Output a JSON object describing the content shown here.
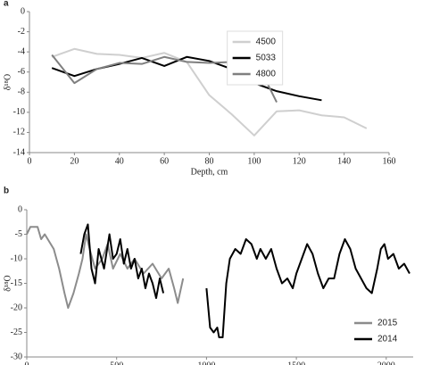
{
  "chart_data": [
    {
      "type": "line",
      "title": "a",
      "xlabel": "Depth, cm",
      "ylabel": "δ¹⁸O",
      "xlim": [
        0,
        160
      ],
      "xticks": [
        0,
        20,
        40,
        60,
        80,
        100,
        120,
        140,
        160
      ],
      "ylim": [
        -14,
        0
      ],
      "yticks": [
        0,
        -2,
        -4,
        -6,
        -8,
        -10,
        -12,
        -14
      ],
      "legend": "right",
      "grid": false,
      "series": [
        {
          "name": "4500",
          "color": "#cfcfcf",
          "x": [
            10,
            20,
            30,
            40,
            50,
            60,
            70,
            80,
            90,
            100,
            110,
            120,
            130,
            140,
            150
          ],
          "values": [
            -4.5,
            -3.7,
            -4.2,
            -4.3,
            -4.6,
            -4.1,
            -5.0,
            -8.3,
            -10.2,
            -12.3,
            -9.9,
            -9.8,
            -10.3,
            -10.5,
            -11.6
          ]
        },
        {
          "name": "5033",
          "color": "#000000",
          "x": [
            10,
            20,
            30,
            40,
            50,
            60,
            70,
            80,
            90,
            100,
            110,
            120,
            130
          ],
          "values": [
            -5.6,
            -6.4,
            -5.7,
            -5.2,
            -4.6,
            -5.4,
            -4.5,
            -4.9,
            -5.7,
            -7.1,
            -7.9,
            -8.4,
            -8.8
          ]
        },
        {
          "name": "4800",
          "color": "#7f7f7f",
          "x": [
            10,
            20,
            30,
            40,
            50,
            60,
            70,
            80,
            90,
            100,
            110
          ],
          "values": [
            -4.3,
            -7.1,
            -5.7,
            -5.1,
            -5.2,
            -4.5,
            -5.0,
            -5.1,
            -5.0,
            -4.5,
            -9.0
          ]
        }
      ]
    },
    {
      "type": "line",
      "title": "b",
      "xlabel": "Depth, cm",
      "ylabel": "δ¹⁸O",
      "xlim": [
        0,
        2150
      ],
      "xticks": [
        0,
        500,
        1000,
        1500,
        2000
      ],
      "ylim": [
        -30,
        0
      ],
      "yticks": [
        0,
        -5,
        -10,
        -15,
        -20,
        -25,
        -30
      ],
      "legend": "lower right",
      "grid": false,
      "series": [
        {
          "name": "2015",
          "color": "#8c8c8c",
          "x": [
            0,
            20,
            60,
            80,
            100,
            150,
            180,
            210,
            230,
            260,
            290,
            310,
            330,
            350,
            380,
            420,
            450,
            480,
            520,
            560,
            600,
            650,
            700,
            750,
            790,
            820,
            840,
            870
          ],
          "values": [
            -5,
            -3.5,
            -3.5,
            -6,
            -5,
            -8,
            -12,
            -17,
            -20,
            -17,
            -13,
            -10,
            -5,
            -8,
            -12,
            -10,
            -7,
            -12,
            -9,
            -12,
            -10,
            -13,
            -11,
            -14,
            -12,
            -16,
            -19,
            -14
          ]
        },
        {
          "name": "2014",
          "color": "#000000",
          "x": [
            300,
            320,
            340,
            360,
            380,
            400,
            430,
            460,
            480,
            500,
            520,
            540,
            560,
            580,
            600,
            620,
            640,
            660,
            680,
            700,
            720,
            740,
            760,
            880,
            1000,
            1020,
            1040,
            1060,
            1070,
            1090,
            1110,
            1130,
            1160,
            1190,
            1220,
            1250,
            1280,
            1300,
            1330,
            1360,
            1390,
            1420,
            1450,
            1480,
            1500,
            1530,
            1560,
            1590,
            1620,
            1650,
            1680,
            1710,
            1740,
            1770,
            1800,
            1830,
            1860,
            1890,
            1920,
            1950,
            1970,
            1990,
            2010,
            2040,
            2070,
            2100,
            2130
          ],
          "values": [
            -9,
            -5,
            -3,
            -12,
            -15,
            -8,
            -12,
            -5,
            -10,
            -9,
            -6,
            -11,
            -8,
            -12,
            -10,
            -14,
            -12,
            -16,
            -13,
            -15,
            -18,
            -14,
            -17,
            null,
            -16,
            -24,
            -25,
            -24,
            -26,
            -26,
            -15,
            -10,
            -8,
            -9,
            -6,
            -7,
            -10,
            -8,
            -10,
            -8,
            -12,
            -15,
            -14,
            -16,
            -13,
            -10,
            -7,
            -9,
            -13,
            -16,
            -14,
            -14,
            -9,
            -6,
            -8,
            -12,
            -14,
            -16,
            -17,
            -12,
            -8,
            -7,
            -10,
            -9,
            -12,
            -11,
            -13
          ]
        }
      ]
    }
  ]
}
